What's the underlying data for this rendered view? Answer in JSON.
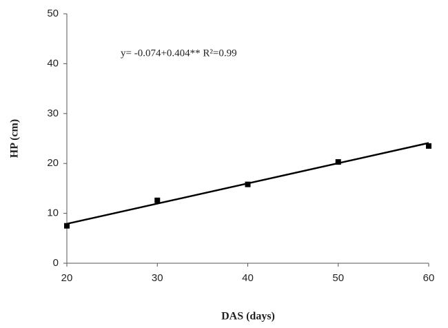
{
  "chart_data": {
    "type": "scatter",
    "annotation": "y= -0.074+0.404** R²=0.99",
    "xlabel": "DAS (days)",
    "ylabel": "HP (cm)",
    "x": [
      20,
      30,
      40,
      50,
      60
    ],
    "series": [
      {
        "color": "#000000",
        "values": [
          7.5,
          12.6,
          15.8,
          20.3,
          23.5
        ]
      }
    ],
    "trend": {
      "x": [
        20,
        60
      ],
      "values": [
        7.9,
        24.1
      ],
      "color": "#000000"
    },
    "xlim": [
      20,
      60
    ],
    "xticks": [
      20,
      30,
      40,
      50,
      60
    ],
    "ylim": [
      0,
      50
    ],
    "yticks": [
      0,
      10,
      20,
      30,
      40,
      50
    ],
    "grid": false
  }
}
